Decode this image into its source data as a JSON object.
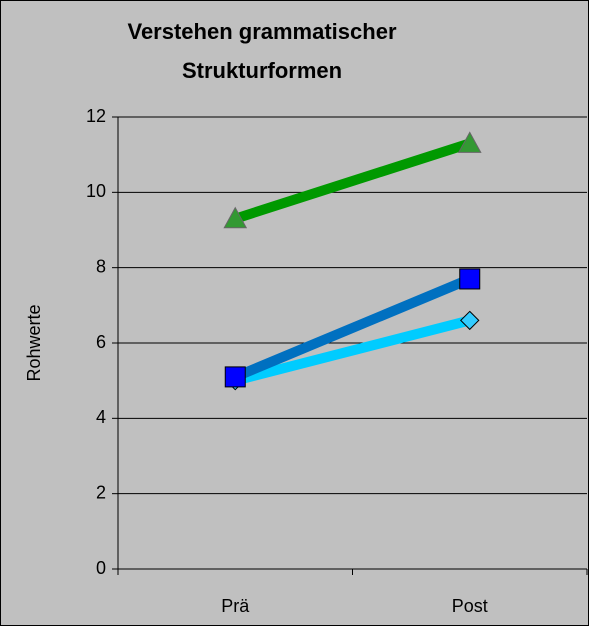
{
  "chart_data": {
    "type": "line",
    "title": [
      "Verstehen grammatischer",
      "Strukturformen"
    ],
    "y_label": "Rohwerte",
    "categories": [
      "Prä",
      "Post"
    ],
    "series": [
      {
        "color": "#00ccff",
        "marker": "diamond",
        "marker_color": "#33ccff",
        "values": [
          5.0,
          6.6
        ]
      },
      {
        "color": "#0070c0",
        "marker": "square",
        "marker_color": "#0000ff",
        "values": [
          5.1,
          7.7
        ]
      },
      {
        "color": "#009900",
        "marker": "triangle",
        "marker_color": "#339933",
        "values": [
          9.3,
          11.3
        ]
      }
    ],
    "ylim": [
      0,
      12
    ],
    "yticks": [
      0,
      2,
      4,
      6,
      8,
      10,
      12
    ],
    "grid": true
  }
}
